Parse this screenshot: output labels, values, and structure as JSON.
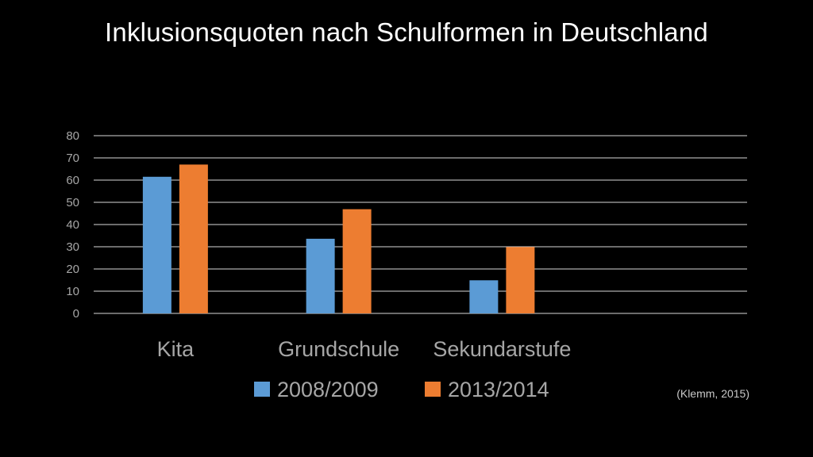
{
  "chart_data": {
    "type": "bar",
    "title": "Inklusionsquoten nach Schulformen in Deutschland",
    "categories": [
      "Kita",
      "Grundschule",
      "Sekundarstufe",
      ""
    ],
    "series": [
      {
        "name": "2008/2009",
        "values": [
          61.5,
          33.6,
          14.9,
          null
        ],
        "color": "#5b9bd5"
      },
      {
        "name": "2013/2014",
        "values": [
          67.0,
          46.9,
          29.9,
          null
        ],
        "color": "#ed7d31"
      }
    ],
    "ylim": [
      0,
      80
    ],
    "yticks": [
      0,
      10,
      20,
      30,
      40,
      50,
      60,
      70,
      80
    ],
    "grid": true,
    "legend": "bottom",
    "source": "(Klemm, 2015)"
  }
}
